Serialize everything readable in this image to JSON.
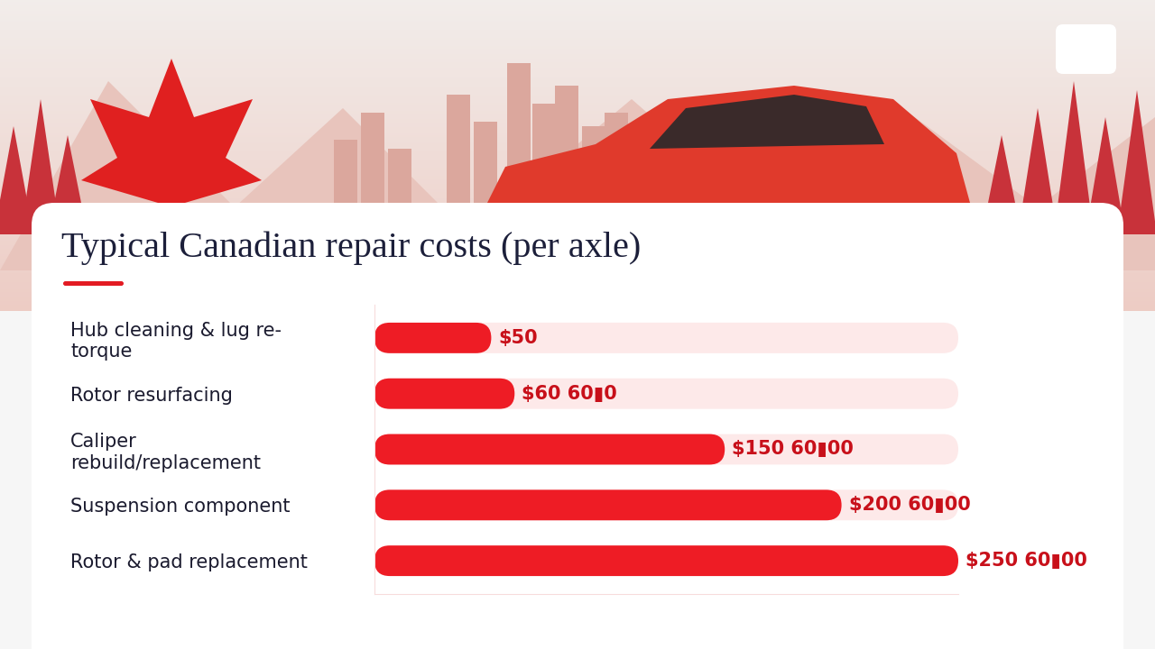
{
  "chart_data": {
    "type": "bar",
    "orientation": "horizontal",
    "title": "Typical Canadian repair costs (per axle)",
    "categories": [
      "Hub cleaning & lug re-torque",
      "Rotor resurfacing",
      "Caliper rebuild/replacement",
      "Suspension component",
      "Rotor & pad replacement"
    ],
    "values": [
      50,
      60,
      150,
      200,
      250
    ],
    "value_labels": [
      "$50",
      "$60 60▮0",
      "$150 60▮00",
      "$200 60▮00",
      "$250 60▮00"
    ],
    "xlim": [
      0,
      250
    ],
    "xticks": [],
    "data_labels": true,
    "tick_labels": "y",
    "grid": false,
    "color": "#ee1c25"
  }
}
